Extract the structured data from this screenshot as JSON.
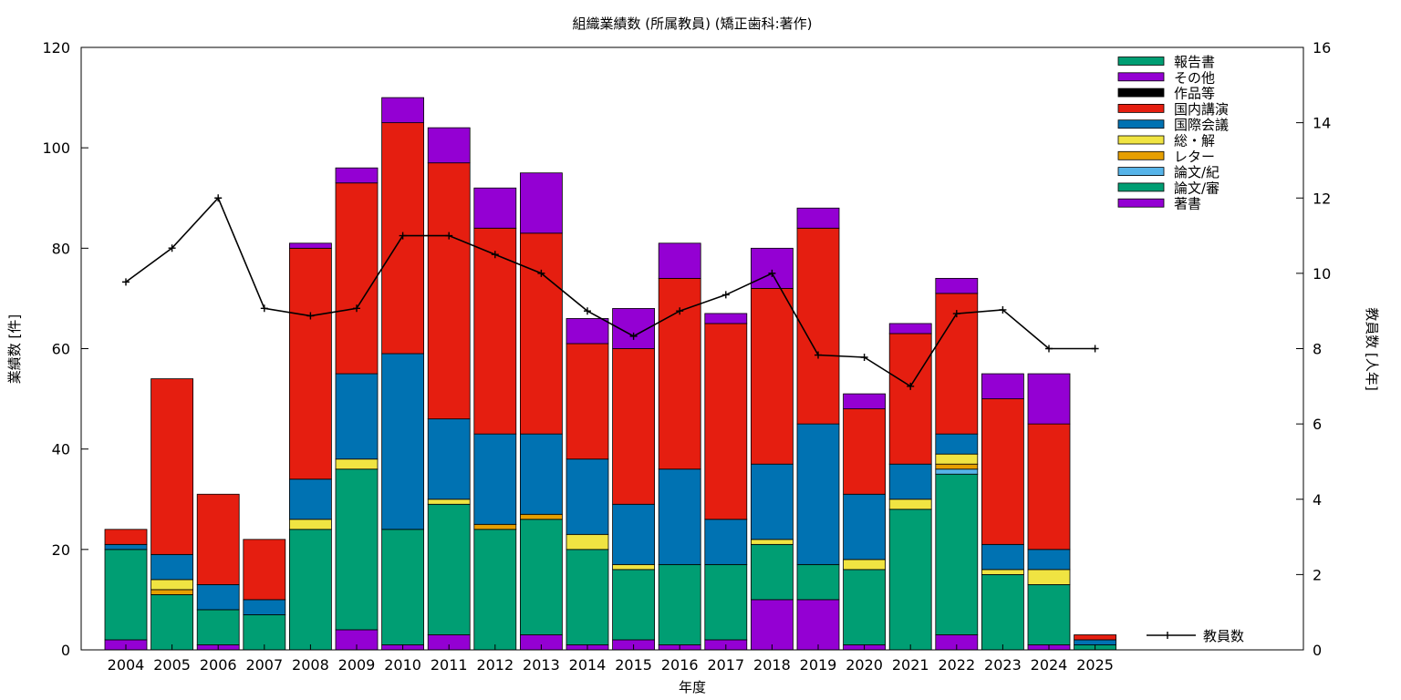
{
  "chart_data": {
    "type": "bar",
    "title": "組織業績数 (所属教員) (矯正歯科:著作)",
    "xlabel": "年度",
    "ylabel": "業績数 [件]",
    "y2label": "教員数 [人年]",
    "ylim": [
      0,
      120
    ],
    "y2lim": [
      0,
      16
    ],
    "yticks": [
      "0",
      "20",
      "40",
      "60",
      "80",
      "100",
      "120"
    ],
    "y2ticks": [
      "0",
      "2",
      "4",
      "6",
      "8",
      "10",
      "12",
      "14",
      "16"
    ],
    "grid": false,
    "legend_position": "top-right",
    "categories": [
      "2004",
      "2005",
      "2006",
      "2007",
      "2008",
      "2009",
      "2010",
      "2011",
      "2012",
      "2013",
      "2014",
      "2015",
      "2016",
      "2017",
      "2018",
      "2019",
      "2020",
      "2021",
      "2022",
      "2023",
      "2024",
      "2025"
    ],
    "series": [
      {
        "name": "著書",
        "color": "#9400d3",
        "values": [
          2,
          0,
          1,
          0,
          0,
          4,
          1,
          3,
          0,
          3,
          1,
          2,
          1,
          2,
          10,
          10,
          1,
          0,
          3,
          0,
          1,
          0
        ]
      },
      {
        "name": "論文/審",
        "color": "#009e73",
        "values": [
          18,
          11,
          7,
          7,
          24,
          32,
          23,
          26,
          24,
          23,
          19,
          14,
          16,
          15,
          11,
          7,
          15,
          28,
          32,
          15,
          12,
          1
        ]
      },
      {
        "name": "論文/紀",
        "color": "#56b4e9",
        "values": [
          0,
          0,
          0,
          0,
          0,
          0,
          0,
          0,
          0,
          0,
          0,
          0,
          0,
          0,
          0,
          0,
          0,
          0,
          1,
          0,
          0,
          0
        ]
      },
      {
        "name": "レター",
        "color": "#e69f00",
        "values": [
          0,
          1,
          0,
          0,
          0,
          0,
          0,
          0,
          1,
          1,
          0,
          0,
          0,
          0,
          0,
          0,
          0,
          0,
          1,
          0,
          0,
          0
        ]
      },
      {
        "name": "総・解",
        "color": "#f0e442",
        "values": [
          0,
          2,
          0,
          0,
          2,
          2,
          0,
          1,
          0,
          0,
          3,
          1,
          0,
          0,
          1,
          0,
          2,
          2,
          2,
          1,
          3,
          0
        ]
      },
      {
        "name": "国際会議",
        "color": "#0072b2",
        "values": [
          1,
          5,
          5,
          3,
          8,
          17,
          35,
          16,
          18,
          16,
          15,
          12,
          19,
          9,
          15,
          28,
          13,
          7,
          4,
          5,
          4,
          1
        ]
      },
      {
        "name": "国内講演",
        "color": "#e51e10",
        "values": [
          3,
          35,
          18,
          12,
          46,
          38,
          46,
          51,
          41,
          40,
          23,
          31,
          38,
          39,
          35,
          39,
          17,
          26,
          28,
          29,
          25,
          1
        ]
      },
      {
        "name": "作品等",
        "color": "#000000",
        "values": [
          0,
          0,
          0,
          0,
          0,
          0,
          0,
          0,
          0,
          0,
          0,
          0,
          0,
          0,
          0,
          0,
          0,
          0,
          0,
          0,
          0,
          0
        ]
      },
      {
        "name": "その他",
        "color": "#9400d3",
        "values": [
          0,
          0,
          0,
          0,
          1,
          3,
          5,
          7,
          8,
          12,
          5,
          8,
          7,
          2,
          8,
          4,
          3,
          2,
          3,
          5,
          10,
          0
        ]
      },
      {
        "name": "報告書",
        "color": "#009e73",
        "values": [
          0,
          0,
          0,
          0,
          0,
          0,
          0,
          0,
          0,
          0,
          0,
          0,
          0,
          0,
          0,
          0,
          0,
          0,
          0,
          0,
          0,
          0
        ]
      }
    ],
    "line_series": {
      "name": "教員数",
      "color": "#000000",
      "axis": "y2",
      "values": [
        9.77,
        10.67,
        12.0,
        9.07,
        8.87,
        9.07,
        11.0,
        11.0,
        10.5,
        10.0,
        9.0,
        8.33,
        9.0,
        9.43,
        10.0,
        7.83,
        7.77,
        7.0,
        8.93,
        9.03,
        8.0,
        8.0
      ]
    }
  }
}
